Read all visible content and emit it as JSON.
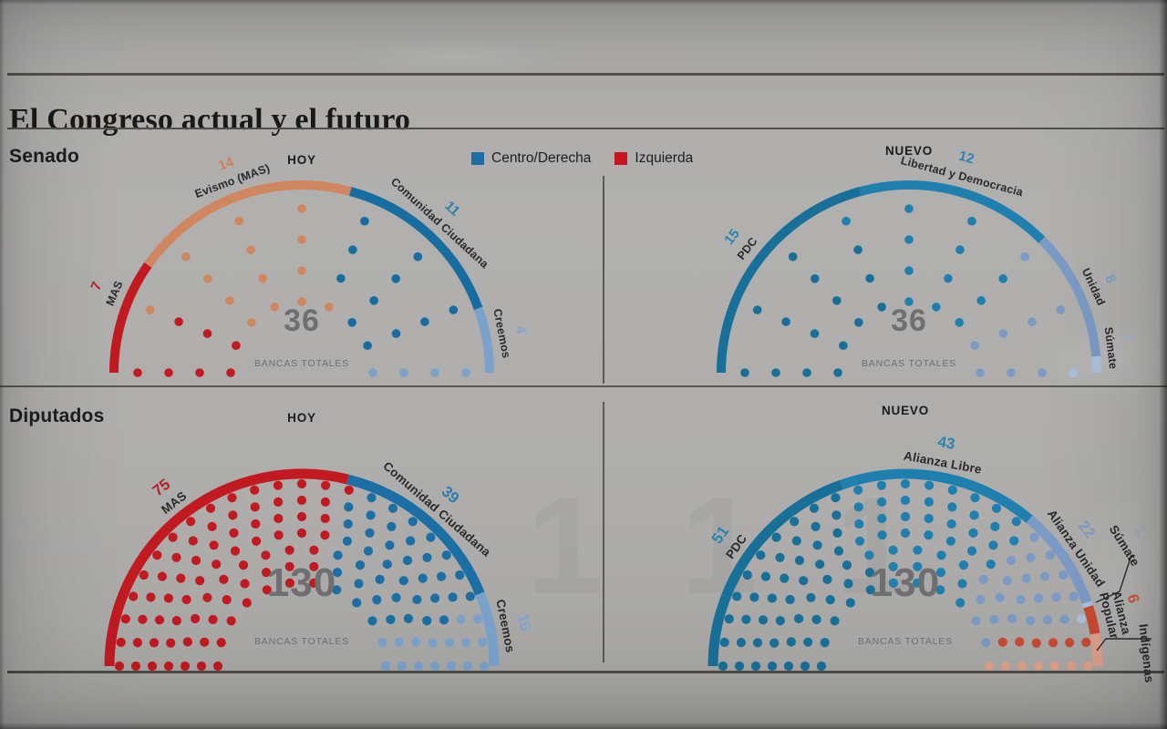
{
  "page": {
    "title": "El Congreso actual y el futuro"
  },
  "sections": [
    {
      "label": "Senado"
    },
    {
      "label": "Diputados"
    }
  ],
  "legend": {
    "items": [
      {
        "label": "Centro/Derecha",
        "color": "#1c6ea4"
      },
      {
        "label": "Izquierda",
        "color": "#c6151f"
      }
    ]
  },
  "watermark": "1 1 1",
  "chart_data": [
    {
      "id": "senado-hoy",
      "type": "parliament-dots",
      "section": "Senado",
      "column": "HOY",
      "total": 36,
      "total_label": "BANCAS TOTALES",
      "parties": [
        {
          "name": "MAS",
          "seats": 7,
          "color": "#c11a21",
          "number_color": "#b92029"
        },
        {
          "name": "Evismo (MAS)",
          "seats": 14,
          "color": "#d0875f",
          "number_color": "#cd7f55"
        },
        {
          "name": "Comunidad Ciudadana",
          "seats": 11,
          "color": "#176d9f",
          "number_color": "#2d7cab"
        },
        {
          "name": "Creemos",
          "seats": 4,
          "color": "#7aa2cb",
          "number_color": "#7fa6cf"
        }
      ]
    },
    {
      "id": "senado-nuevo",
      "type": "parliament-dots",
      "section": "Senado",
      "column": "NUEVO",
      "total": 36,
      "total_label": "BANCAS TOTALES",
      "parties": [
        {
          "name": "PDC",
          "seats": 15,
          "color": "#187098",
          "number_color": "#2a84ad"
        },
        {
          "name": "Libertad y Democracia",
          "seats": 12,
          "color": "#1f7fae",
          "number_color": "#2a84ad"
        },
        {
          "name": "Unidad",
          "seats": 8,
          "color": "#7b9ac4",
          "number_color": "#7d9cc4"
        },
        {
          "name": "Súmate",
          "seats": 1,
          "color": "#aac0da",
          "number_color": "#9fb6d2"
        }
      ]
    },
    {
      "id": "diputados-hoy",
      "type": "parliament-dots",
      "section": "Diputados",
      "column": "HOY",
      "total": 130,
      "total_label": "BANCAS TOTALES",
      "parties": [
        {
          "name": "MAS",
          "seats": 75,
          "color": "#c11a21",
          "number_color": "#b92029"
        },
        {
          "name": "Comunidad Ciudadana",
          "seats": 39,
          "color": "#1b6fa5",
          "number_color": "#2d7cab"
        },
        {
          "name": "Creemos",
          "seats": 16,
          "color": "#7aa2cb",
          "number_color": "#7fa6cf"
        }
      ]
    },
    {
      "id": "diputados-nuevo",
      "type": "parliament-dots",
      "section": "Diputados",
      "column": "NUEVO",
      "total": 130,
      "total_label": "BANCAS TOTALES",
      "parties": [
        {
          "name": "PDC",
          "seats": 51,
          "color": "#187098",
          "number_color": "#2a84ad"
        },
        {
          "name": "Alianza Libre",
          "seats": 43,
          "color": "#1f7fae",
          "number_color": "#2a84ad"
        },
        {
          "name": "Alianza Unidad",
          "seats": 22,
          "color": "#7b9ac4",
          "number_color": "#7d9cc4"
        },
        {
          "name": "Súmate",
          "seats": 1,
          "color": "#aac0da",
          "number_color": "#9aa9bc"
        },
        {
          "name": "Alianza\nPopular",
          "seats": 6,
          "color": "#c84a31",
          "number_color": "#c9573c"
        },
        {
          "name": "Indígenas",
          "seats": 7,
          "color": "#dda08a",
          "number_visible": false
        }
      ]
    }
  ]
}
